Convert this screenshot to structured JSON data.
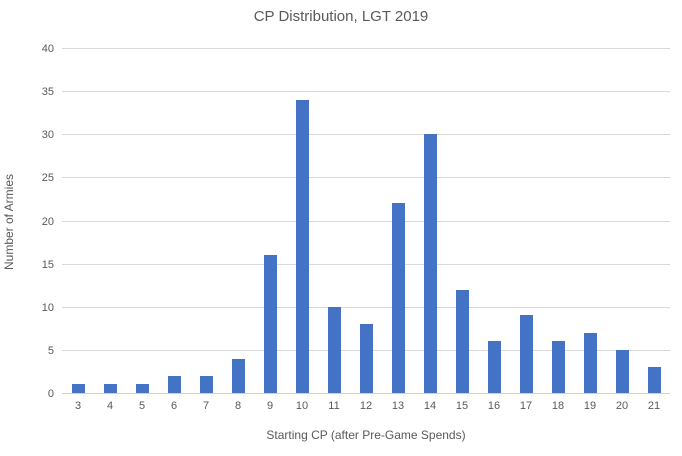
{
  "chart_data": {
    "type": "bar",
    "title": "CP Distribution, LGT 2019",
    "xlabel": "Starting CP (after Pre-Game Spends)",
    "ylabel": "Number of Armies",
    "categories": [
      "3",
      "4",
      "5",
      "6",
      "7",
      "8",
      "9",
      "10",
      "11",
      "12",
      "13",
      "14",
      "15",
      "16",
      "17",
      "18",
      "19",
      "20",
      "21"
    ],
    "values": [
      1,
      1,
      1,
      2,
      2,
      4,
      16,
      34,
      10,
      8,
      22,
      30,
      12,
      6,
      9,
      6,
      7,
      5,
      3
    ],
    "ylim": [
      0,
      40
    ],
    "ytick_step": 5,
    "yticks": [
      0,
      5,
      10,
      15,
      20,
      25,
      30,
      35,
      40
    ],
    "grid": true,
    "legend_position": "none",
    "colors": {
      "bar": "#4472C4",
      "gridline": "#d9d9d9",
      "axis_line": "#d0d0d0",
      "text": "#595959"
    }
  }
}
